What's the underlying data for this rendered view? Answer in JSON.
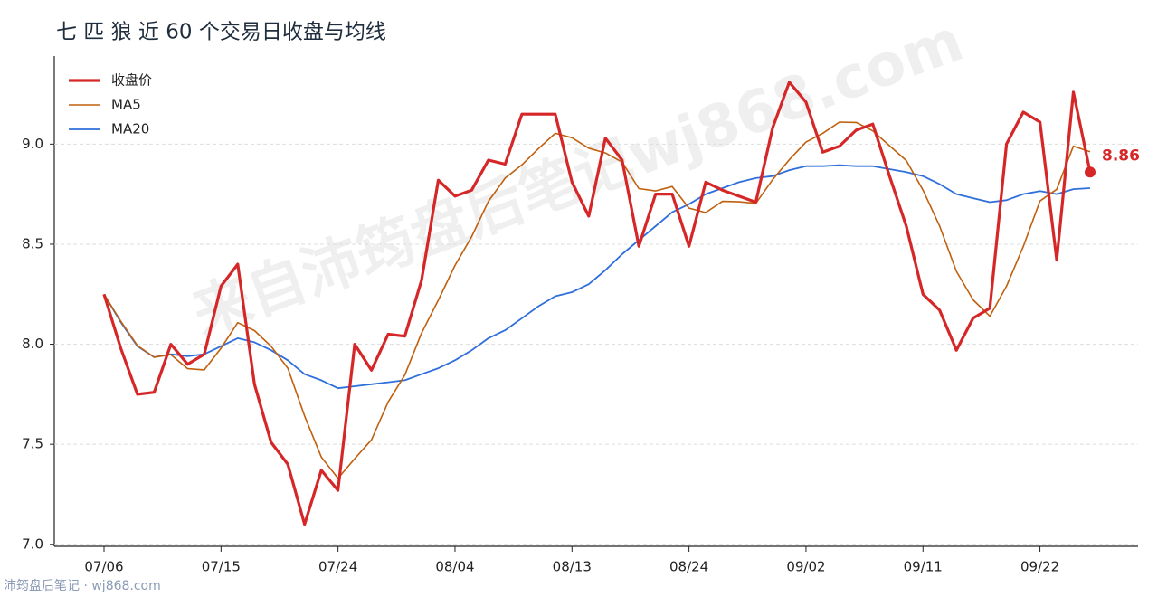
{
  "chart_data": {
    "type": "line",
    "title": "七 匹 狼 近 60 个交易日收盘与均线",
    "watermark": "来自沛筠盘后笔记wj868.com",
    "footer": "沛筠盘后笔记 · wj868.com",
    "categories": [
      "07/06",
      null,
      null,
      null,
      null,
      null,
      null,
      "07/15",
      null,
      null,
      null,
      null,
      null,
      null,
      "07/24",
      null,
      null,
      null,
      null,
      null,
      null,
      "08/04",
      null,
      null,
      null,
      null,
      null,
      null,
      "08/13",
      null,
      null,
      null,
      null,
      null,
      null,
      "08/24",
      null,
      null,
      null,
      null,
      null,
      null,
      "09/02",
      null,
      null,
      null,
      null,
      null,
      null,
      "09/11",
      null,
      null,
      null,
      null,
      null,
      null,
      "09/22",
      null,
      null,
      null
    ],
    "series": [
      {
        "name": "收盘价",
        "color": "#d62728",
        "width": 3.2,
        "values": [
          8.25,
          7.98,
          7.75,
          7.76,
          8.0,
          7.9,
          7.95,
          8.29,
          8.4,
          7.8,
          7.51,
          7.4,
          7.1,
          7.37,
          7.27,
          8.0,
          7.87,
          8.05,
          8.04,
          8.32,
          8.82,
          8.74,
          8.77,
          8.92,
          8.9,
          9.15,
          9.15,
          9.15,
          8.81,
          8.64,
          9.03,
          8.92,
          8.49,
          8.75,
          8.75,
          8.49,
          8.81,
          8.77,
          8.74,
          8.71,
          9.08,
          9.31,
          9.21,
          8.96,
          8.99,
          9.07,
          9.1,
          8.84,
          8.59,
          8.25,
          8.17,
          7.97,
          8.13,
          8.18,
          9.0,
          9.16,
          9.11,
          8.42,
          9.26,
          8.86
        ]
      },
      {
        "name": "MA5",
        "color": "#c0600f",
        "width": 1.6,
        "values": [
          8.25,
          8.115,
          7.993,
          7.935,
          7.948,
          7.878,
          7.872,
          7.98,
          8.108,
          8.068,
          7.99,
          7.88,
          7.642,
          7.436,
          7.33,
          7.428,
          7.522,
          7.712,
          7.846,
          8.056,
          8.22,
          8.394,
          8.538,
          8.714,
          8.83,
          8.896,
          8.978,
          9.054,
          9.032,
          8.98,
          8.956,
          8.91,
          8.778,
          8.766,
          8.788,
          8.68,
          8.658,
          8.714,
          8.712,
          8.704,
          8.822,
          8.922,
          9.01,
          9.054,
          9.11,
          9.108,
          9.066,
          8.992,
          8.918,
          8.77,
          8.59,
          8.364,
          8.222,
          8.14,
          8.29,
          8.488,
          8.716,
          8.774,
          8.99,
          8.962
        ]
      },
      {
        "name": "MA20",
        "color": "#2f6fdc",
        "width": 1.8,
        "values": [
          8.25,
          8.11,
          7.99,
          7.935,
          7.95,
          7.94,
          7.95,
          7.99,
          8.03,
          8.01,
          7.97,
          7.92,
          7.85,
          7.82,
          7.78,
          7.79,
          7.8,
          7.81,
          7.82,
          7.85,
          7.88,
          7.92,
          7.97,
          8.03,
          8.07,
          8.13,
          8.19,
          8.24,
          8.26,
          8.3,
          8.37,
          8.45,
          8.52,
          8.59,
          8.66,
          8.7,
          8.75,
          8.78,
          8.81,
          8.83,
          8.84,
          8.87,
          8.89,
          8.89,
          8.895,
          8.89,
          8.89,
          8.875,
          8.86,
          8.84,
          8.8,
          8.75,
          8.73,
          8.71,
          8.72,
          8.75,
          8.765,
          8.75,
          8.775,
          8.78
        ]
      }
    ],
    "ylim": [
      6.99,
      9.44
    ],
    "yticks": [
      {
        "value": 7,
        "label": "7.0"
      },
      {
        "value": 7.5,
        "label": "7.5"
      },
      {
        "value": 8,
        "label": "8.0"
      },
      {
        "value": 8.5,
        "label": "8.5"
      },
      {
        "value": 9,
        "label": "9.0"
      }
    ],
    "grid": true,
    "legend": "upper-left"
  }
}
